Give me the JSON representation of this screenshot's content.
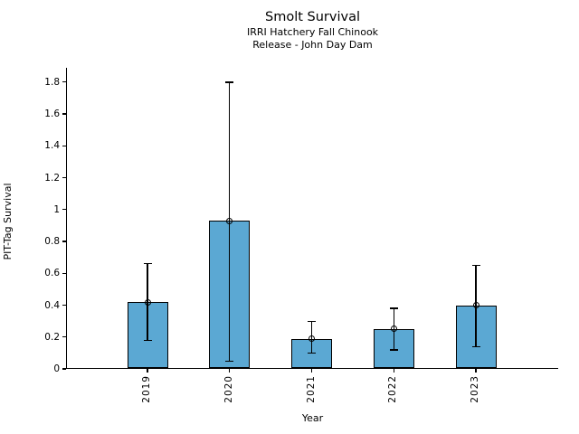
{
  "chart_data": {
    "type": "bar",
    "title": "Smolt Survival",
    "subtitle_line1": "IRRI Hatchery Fall Chinook",
    "subtitle_line2": "Release - John Day Dam",
    "xlabel": "Year",
    "ylabel": "PIT-Tag Survival",
    "categories": [
      "2019",
      "2020",
      "2021",
      "2022",
      "2023"
    ],
    "values": [
      0.42,
      0.93,
      0.19,
      0.25,
      0.4
    ],
    "error_low": [
      0.18,
      0.05,
      0.1,
      0.12,
      0.14
    ],
    "error_high": [
      0.66,
      1.8,
      0.3,
      0.38,
      0.65
    ],
    "ytick_labels": [
      "0",
      "0.2",
      "0.4",
      "0.6",
      "0.8",
      "1",
      "1.2",
      "1.4",
      "1.6",
      "1.8"
    ],
    "ytick_values": [
      0,
      0.2,
      0.4,
      0.6,
      0.8,
      1.0,
      1.2,
      1.4,
      1.6,
      1.8
    ],
    "ylim": [
      0,
      1.89
    ],
    "grid": "off",
    "legend": "none",
    "marker": "open-circle",
    "bar_color": "#5BA8D3",
    "edge_color": "#000000",
    "error_color": "#000000",
    "text_color": "#000000"
  }
}
